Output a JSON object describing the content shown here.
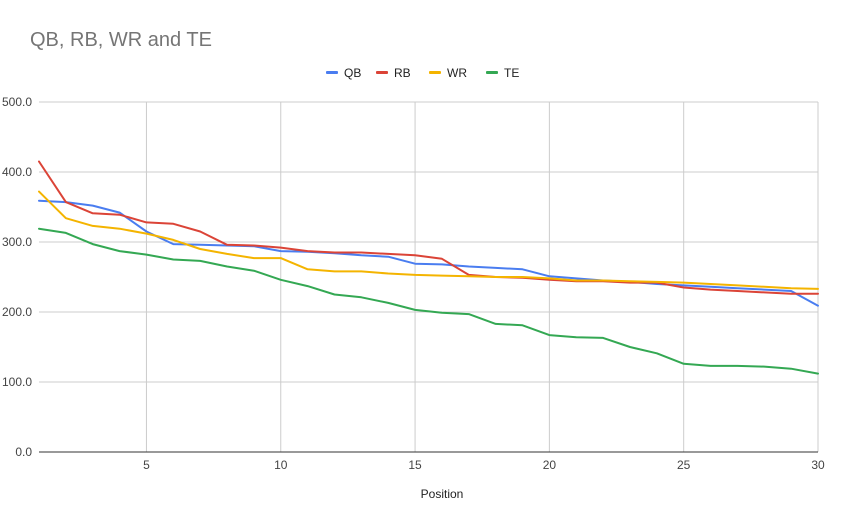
{
  "chart_data": {
    "type": "line",
    "title": "QB, RB, WR and TE",
    "xlabel": "Position",
    "ylabel": "",
    "xlim": [
      1,
      30
    ],
    "ylim": [
      0,
      500
    ],
    "x_ticks": [
      5,
      10,
      15,
      20,
      25,
      30
    ],
    "y_ticks": [
      0,
      100,
      200,
      300,
      400,
      500
    ],
    "y_tick_labels": [
      "0.0",
      "100.0",
      "200.0",
      "300.0",
      "400.0",
      "500.0"
    ],
    "legend_position": "top",
    "grid": true,
    "x": [
      1,
      2,
      3,
      4,
      5,
      6,
      7,
      8,
      9,
      10,
      11,
      12,
      13,
      14,
      15,
      16,
      17,
      18,
      19,
      20,
      21,
      22,
      23,
      24,
      25,
      26,
      27,
      28,
      29,
      30
    ],
    "series": [
      {
        "name": "QB",
        "color": "#4a7df0",
        "values": [
          359,
          357,
          352,
          342,
          315,
          297,
          296,
          295,
          294,
          287,
          286,
          284,
          281,
          279,
          269,
          268,
          265,
          263,
          261,
          251,
          248,
          245,
          243,
          240,
          238,
          236,
          234,
          232,
          230,
          209
        ]
      },
      {
        "name": "RB",
        "color": "#db4437",
        "values": [
          415,
          357,
          341,
          339,
          328,
          326,
          315,
          296,
          295,
          292,
          287,
          285,
          285,
          283,
          281,
          276,
          253,
          250,
          249,
          246,
          244,
          244,
          242,
          242,
          235,
          232,
          230,
          228,
          226,
          226
        ]
      },
      {
        "name": "WR",
        "color": "#f4b400",
        "values": [
          372,
          334,
          323,
          319,
          312,
          303,
          290,
          283,
          277,
          277,
          261,
          258,
          258,
          255,
          253,
          252,
          251,
          250,
          250,
          248,
          245,
          245,
          244,
          243,
          242,
          240,
          238,
          236,
          234,
          233
        ]
      },
      {
        "name": "TE",
        "color": "#34a853",
        "values": [
          319,
          313,
          297,
          287,
          282,
          275,
          273,
          265,
          259,
          246,
          237,
          225,
          221,
          213,
          203,
          199,
          197,
          183,
          181,
          167,
          164,
          163,
          150,
          141,
          126,
          123,
          123,
          122,
          119,
          112
        ]
      }
    ]
  }
}
